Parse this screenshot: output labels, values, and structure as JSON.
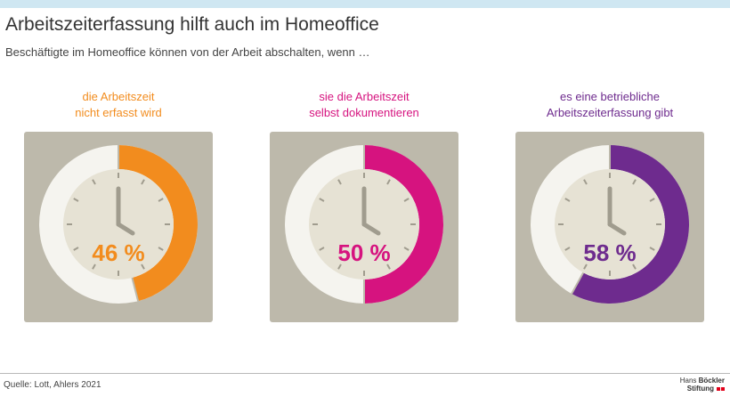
{
  "header": {
    "title": "Arbeitszeiterfassung hilft auch im Homeoffice",
    "subtitle": "Beschäftigte im Homeoffice können von der Arbeit abschalten, wenn  …"
  },
  "chart_data": {
    "type": "donut",
    "unit": "%",
    "series": [
      {
        "label_line1": "die Arbeitszeit",
        "label_line2": "nicht erfasst wird",
        "value": 46,
        "value_label": "46 %",
        "color": "#f28c1e"
      },
      {
        "label_line1": "sie die Arbeitszeit",
        "label_line2": "selbst dokumentieren",
        "value": 50,
        "value_label": "50 %",
        "color": "#d6137f"
      },
      {
        "label_line1": "es eine betriebliche",
        "label_line2": "Arbeitszeiterfassung gibt",
        "value": 58,
        "value_label": "58 %",
        "color": "#6e2b8e"
      }
    ],
    "colors": {
      "tile": "#bdb9ab",
      "ring_rest": "#f5f4ef",
      "clock_face": "#e6e2d4",
      "hands": "#a09c8e"
    }
  },
  "footer": {
    "source": "Quelle: Lott, Ahlers 2021",
    "logo_line1_a": "Hans",
    "logo_line1_b": "Böckler",
    "logo_line2": "Stiftung"
  }
}
